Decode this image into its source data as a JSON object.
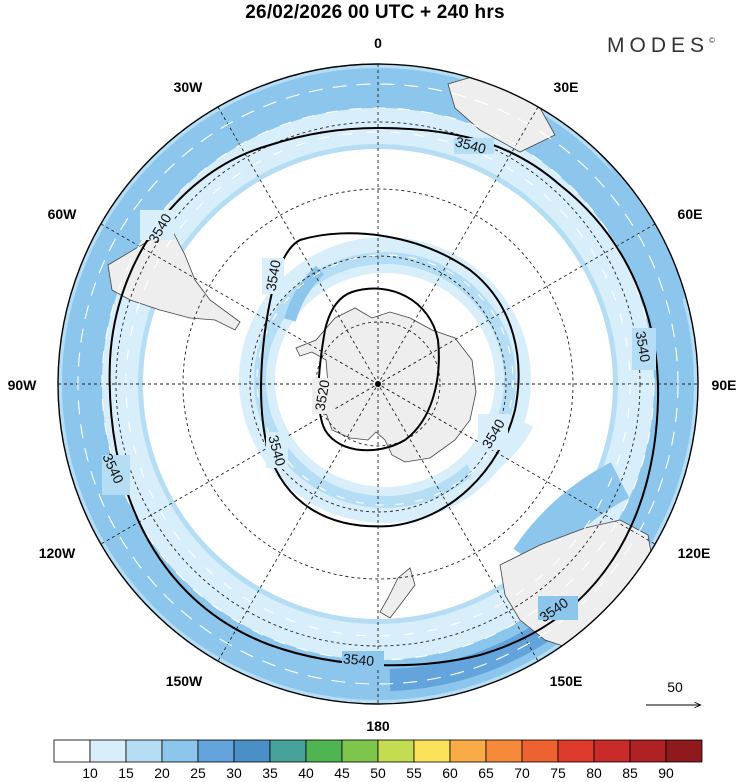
{
  "title": "26/02/2026  00 UTC  + 240 hrs",
  "brand": "MODES",
  "brand_mark": "©",
  "longitude_labels": {
    "n0": "0",
    "n30e": "30E",
    "n60e": "60E",
    "n90e": "90E",
    "n120e": "120E",
    "n150e": "150E",
    "n180": "180",
    "n150w": "150W",
    "n120w": "120W",
    "n90w": "90W",
    "n60w": "60W",
    "n30w": "30W"
  },
  "contour_labels": {
    "a": "3540",
    "b": "3540",
    "c": "3540",
    "d": "3540",
    "e": "3540",
    "f": "3540",
    "g": "3540",
    "h": "3540",
    "i": "3520",
    "j": "3540",
    "k": "3540"
  },
  "vector_reference": "50",
  "colorbar": {
    "ticks": [
      "10",
      "15",
      "20",
      "25",
      "30",
      "35",
      "40",
      "45",
      "50",
      "55",
      "60",
      "65",
      "70",
      "75",
      "80",
      "85",
      "90"
    ],
    "colors": [
      "#ffffff",
      "#d8eefb",
      "#b5def5",
      "#8cc6ec",
      "#62a4db",
      "#4a8fc6",
      "#47a39a",
      "#4fb553",
      "#7ec54b",
      "#c4dc52",
      "#fce15a",
      "#f9ac45",
      "#f58a3a",
      "#ee6232",
      "#de3a2c",
      "#c92a2a",
      "#ae2225",
      "#8e1a1d"
    ]
  },
  "colors": {
    "land": "#eeeeee",
    "coast": "#444444",
    "contour": "#000000",
    "grid": "#222222"
  }
}
